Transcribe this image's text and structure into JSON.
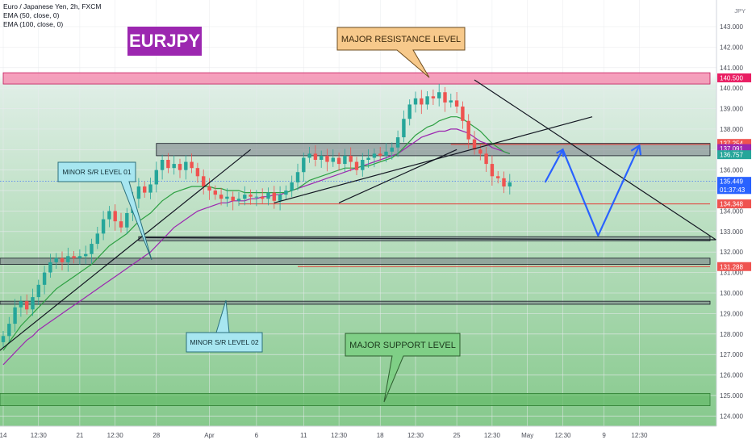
{
  "legend": {
    "title": "Euro / Japanese Yen, 2h, FXCM",
    "ema50": "EMA (50, close, 0)",
    "ema100": "EMA (100, close, 0)"
  },
  "brand_label": "EURJPY",
  "axis_unit": "JPY",
  "callouts": {
    "major_resistance": "MAJOR RESISTANCE LEVEL",
    "major_support": "MAJOR SUPPORT LEVEL",
    "minor_sr_01": "MINOR S/R LEVEL 01",
    "minor_sr_02": "MINOR S/R LEVEL 02"
  },
  "colors": {
    "up": "#26a69a",
    "down": "#ef5350",
    "ema50": "#2ea043",
    "ema100": "#9c27b0",
    "resistance": "#f48fb1",
    "support_zone": "#66bb6a",
    "projection": "#2962ff",
    "hline": "#e53935"
  },
  "chart_data": {
    "type": "candlestick",
    "symbol": "EURJPY",
    "timeframe": "2h",
    "ylim": [
      123.5,
      144.3
    ],
    "y_ticks": [
      124,
      125,
      126,
      127,
      128,
      129,
      130,
      131,
      132,
      133,
      134,
      135,
      136,
      137,
      138,
      139,
      140,
      141,
      142,
      143
    ],
    "x_ticks": [
      {
        "label": "14",
        "i": 0
      },
      {
        "label": "12:30",
        "i": 6
      },
      {
        "label": "21",
        "i": 13
      },
      {
        "label": "12:30",
        "i": 19
      },
      {
        "label": "28",
        "i": 26
      },
      {
        "label": "Apr",
        "i": 35
      },
      {
        "label": "6",
        "i": 43
      },
      {
        "label": "11",
        "i": 51
      },
      {
        "label": "12:30",
        "i": 57
      },
      {
        "label": "18",
        "i": 64
      },
      {
        "label": "12:30",
        "i": 70
      },
      {
        "label": "25",
        "i": 77
      },
      {
        "label": "12:30",
        "i": 83
      },
      {
        "label": "May",
        "i": 89
      },
      {
        "label": "12:30",
        "i": 95
      },
      {
        "label": "9",
        "i": 102
      },
      {
        "label": "12:30",
        "i": 108
      }
    ],
    "price_labels": [
      {
        "value": "140.500",
        "y": 140.5,
        "color": "#e91e63"
      },
      {
        "value": "137.254",
        "y": 137.3,
        "color": "#ef5350"
      },
      {
        "value": "137.091",
        "y": 137.05,
        "color": "#9c27b0"
      },
      {
        "value": "136.757",
        "y": 136.75,
        "color": "#26a69a"
      },
      {
        "value": "135.449",
        "y": 135.45,
        "color": "#2962ff"
      },
      {
        "value": "01:37:43",
        "y": 135.05,
        "color": "#2962ff"
      },
      {
        "value": "134.348",
        "y": 134.35,
        "color": "#ef5350"
      },
      {
        "value": "131.288",
        "y": 131.29,
        "color": "#ef5350"
      }
    ],
    "close": [
      127.9,
      128.5,
      129.3,
      129.6,
      129.2,
      129.8,
      130.4,
      131.0,
      131.5,
      131.7,
      131.5,
      131.8,
      131.7,
      131.8,
      131.9,
      132.4,
      132.9,
      133.6,
      134.0,
      133.5,
      133.2,
      133.9,
      134.6,
      135.2,
      134.9,
      135.3,
      136.0,
      136.5,
      136.1,
      136.3,
      136.0,
      136.4,
      136.1,
      135.7,
      135.2,
      135.0,
      134.8,
      134.6,
      134.7,
      134.5,
      134.6,
      134.8,
      134.7,
      134.7,
      134.6,
      134.9,
      134.5,
      134.8,
      135.0,
      135.4,
      135.9,
      136.6,
      136.8,
      136.5,
      136.7,
      136.4,
      136.6,
      136.3,
      136.7,
      136.4,
      136.0,
      136.5,
      136.6,
      136.8,
      136.7,
      136.9,
      137.1,
      137.6,
      138.5,
      139.2,
      139.5,
      139.2,
      139.6,
      139.5,
      139.8,
      139.3,
      139.4,
      139.1,
      138.4,
      137.5,
      137.0,
      136.8,
      136.3,
      135.7,
      135.6,
      135.2,
      135.4
    ],
    "ema50": [
      127.2,
      127.6,
      128.0,
      128.4,
      128.7,
      129.0,
      129.3,
      129.6,
      129.9,
      130.2,
      130.4,
      130.6,
      130.8,
      131.0,
      131.2,
      131.4,
      131.7,
      132.0,
      132.3,
      132.5,
      132.7,
      132.9,
      133.2,
      133.5,
      133.7,
      133.9,
      134.2,
      134.5,
      134.7,
      134.9,
      135.0,
      135.1,
      135.2,
      135.2,
      135.2,
      135.2,
      135.1,
      135.1,
      135.0,
      135.0,
      135.0,
      134.9,
      134.9,
      134.9,
      134.9,
      134.9,
      134.9,
      134.9,
      134.9,
      135.0,
      135.1,
      135.3,
      135.5,
      135.6,
      135.7,
      135.8,
      135.9,
      136.0,
      136.1,
      136.1,
      136.1,
      136.2,
      136.2,
      136.3,
      136.4,
      136.5,
      136.6,
      136.8,
      137.1,
      137.4,
      137.7,
      137.9,
      138.1,
      138.2,
      138.4,
      138.5,
      138.6,
      138.6,
      138.5,
      138.3,
      138.1,
      137.9,
      137.6,
      137.3,
      137.1,
      136.9,
      136.8
    ],
    "ema100": [
      126.5,
      126.8,
      127.1,
      127.4,
      127.7,
      127.9,
      128.2,
      128.4,
      128.6,
      128.8,
      129.0,
      129.2,
      129.4,
      129.6,
      129.8,
      130.0,
      130.2,
      130.4,
      130.6,
      130.8,
      131.0,
      131.2,
      131.4,
      131.6,
      131.8,
      132.0,
      132.3,
      132.6,
      132.9,
      133.2,
      133.4,
      133.6,
      133.8,
      134.0,
      134.1,
      134.2,
      134.3,
      134.4,
      134.4,
      134.5,
      134.5,
      134.5,
      134.6,
      134.6,
      134.7,
      134.7,
      134.8,
      134.8,
      134.9,
      135.0,
      135.1,
      135.2,
      135.3,
      135.4,
      135.5,
      135.6,
      135.7,
      135.8,
      135.9,
      136.0,
      136.1,
      136.2,
      136.3,
      136.4,
      136.5,
      136.6,
      136.7,
      136.8,
      137.0,
      137.2,
      137.4,
      137.6,
      137.7,
      137.8,
      137.9,
      137.9,
      138.0,
      138.0,
      137.9,
      137.8,
      137.6,
      137.4,
      137.3,
      137.1,
      137.0,
      136.9,
      136.8
    ],
    "zones": [
      {
        "name": "major-resistance-zone",
        "y0": 140.2,
        "y1": 140.75,
        "i0": 0,
        "i1": 120
      },
      {
        "name": "minor-sr-zone-top",
        "y0": 136.7,
        "y1": 137.3,
        "i0": 26,
        "i1": 120
      },
      {
        "name": "minor-sr-zone-low",
        "y0": 132.55,
        "y1": 132.75,
        "i0": 23,
        "i1": 120
      },
      {
        "name": "minor-sr-zone-left",
        "y0": 131.4,
        "y1": 131.7,
        "i0": -1,
        "i1": 120
      },
      {
        "name": "minor-sr-zone-02",
        "y0": 129.45,
        "y1": 129.6,
        "i0": -1,
        "i1": 120
      },
      {
        "name": "major-support-zone",
        "y0": 124.5,
        "y1": 125.1,
        "i0": -1,
        "i1": 120
      }
    ],
    "hlines": [
      {
        "y": 137.254,
        "i0": 76,
        "i1": 120
      },
      {
        "y": 134.348,
        "i0": 40,
        "i1": 120
      },
      {
        "y": 131.288,
        "i0": 50,
        "i1": 120
      }
    ],
    "trendlines": [
      {
        "name": "trendline-rising-1",
        "i0": -1,
        "y0": 127.1,
        "i1": 42,
        "y1": 137.0
      },
      {
        "name": "trendline-rising-2",
        "i0": 46,
        "y0": 134.4,
        "i1": 100,
        "y1": 138.6
      },
      {
        "name": "trendline-inner",
        "i0": 57,
        "y0": 134.4,
        "i1": 77,
        "y1": 137.0
      },
      {
        "name": "trendline-descending",
        "i0": 80,
        "y0": 140.4,
        "i1": 121,
        "y1": 132.6
      },
      {
        "name": "trendline-triangle-base",
        "i0": 24,
        "y0": 132.7,
        "i1": 121,
        "y1": 132.6
      }
    ],
    "projection": [
      {
        "i": 92,
        "y": 135.4
      },
      {
        "i": 95,
        "y": 137.0
      },
      {
        "i": 101,
        "y": 132.8
      },
      {
        "i": 108,
        "y": 137.2
      }
    ]
  }
}
